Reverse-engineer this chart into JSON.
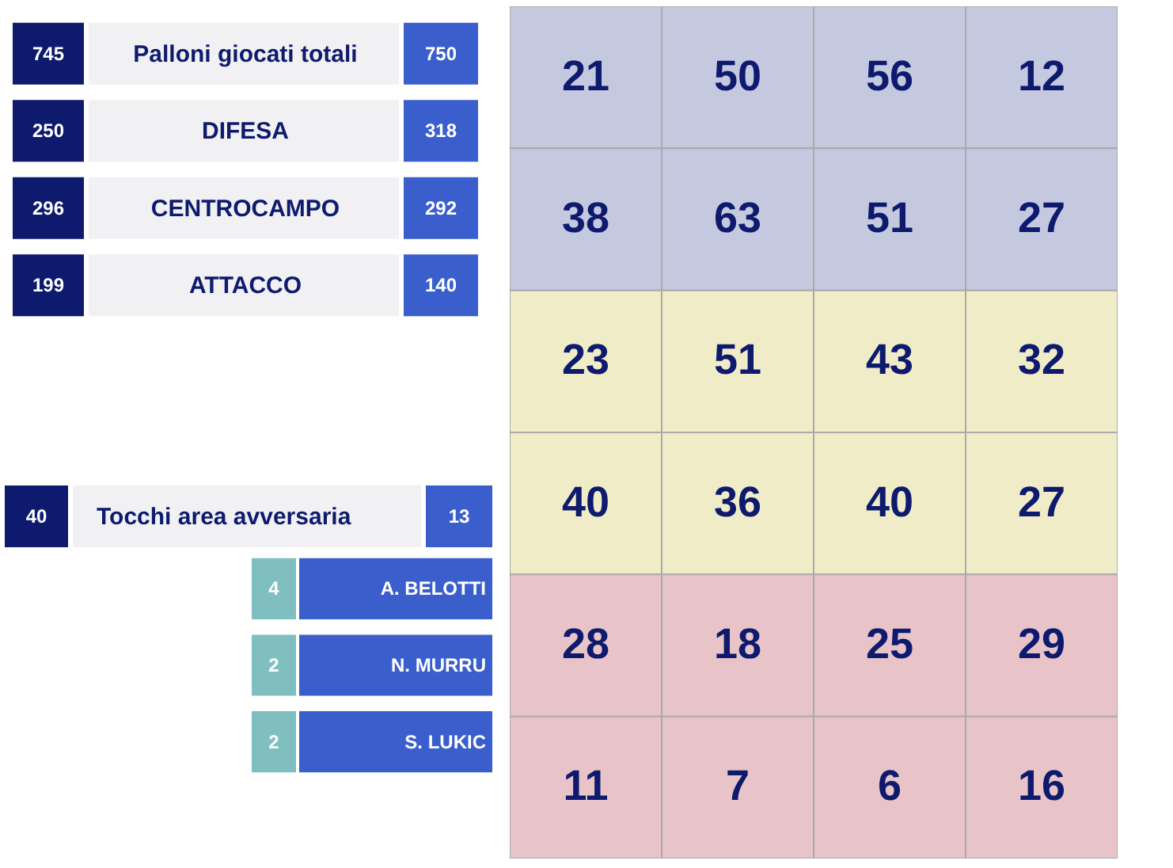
{
  "chart_data": [
    {
      "type": "other",
      "categories": [
        "Palloni giocati totali",
        "DIFESA",
        "CENTROCAMPO",
        "ATTACCO"
      ],
      "series": [
        {
          "color": "#0d1a6e",
          "values": [
            745,
            250,
            296,
            199
          ]
        },
        {
          "color": "#3a5fcd",
          "values": [
            750,
            318,
            292,
            140
          ]
        }
      ],
      "data_labels": true
    },
    {
      "type": "other",
      "categories": [
        "Tocchi area avversaria"
      ],
      "series": [
        {
          "color": "#0d1a6e",
          "values": [
            40
          ]
        },
        {
          "color": "#3a5fcd",
          "values": [
            13
          ]
        }
      ],
      "data_labels": true
    },
    {
      "type": "other",
      "categories": [
        "A. BELOTTI",
        "N. MURRU",
        "S. LUKIC"
      ],
      "series": [
        {
          "color": "#7fbfbf",
          "values": [
            4,
            2,
            2
          ]
        }
      ],
      "data_labels": true
    },
    {
      "type": "heatmap",
      "categories": [
        null,
        null,
        null,
        null
      ],
      "y_categories": [
        null,
        null,
        null,
        null,
        null,
        null
      ],
      "cells": [
        [
          21,
          50,
          56,
          12
        ],
        [
          38,
          63,
          51,
          27
        ],
        [
          23,
          51,
          43,
          32
        ],
        [
          40,
          36,
          40,
          27
        ],
        [
          28,
          18,
          25,
          29
        ],
        [
          11,
          7,
          6,
          16
        ]
      ],
      "data_labels": true
    }
  ]
}
